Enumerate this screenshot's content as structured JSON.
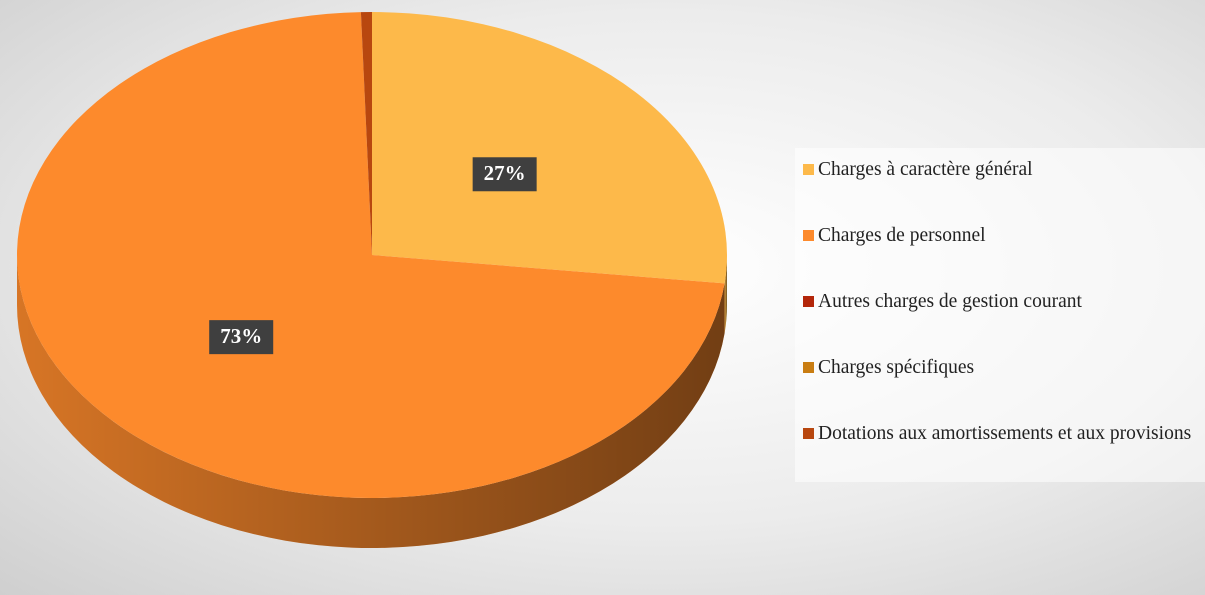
{
  "chart_data": {
    "type": "pie",
    "categories": [
      "Charges à caractère général",
      "Charges de personnel",
      "Autres charges de gestion courant",
      "Charges spécifiques",
      "Dotations aux amortissements et aux provisions"
    ],
    "values": [
      27,
      73,
      0,
      0,
      0.5
    ],
    "value_labels": [
      "27%",
      "73%",
      null,
      null,
      null
    ],
    "colors": [
      "#fdb94a",
      "#fd8a2c",
      "#b3260a",
      "#c97d12",
      "#b8470f"
    ],
    "legend": "right"
  }
}
